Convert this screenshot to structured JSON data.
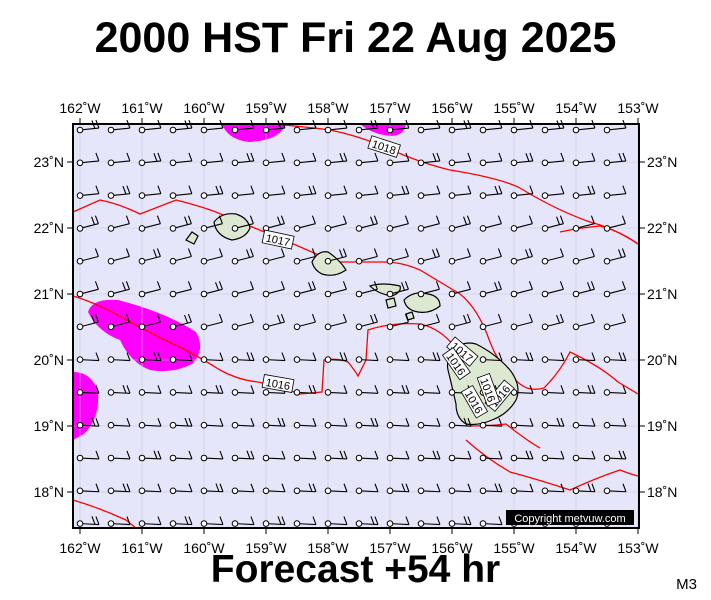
{
  "header": {
    "title": "2000 HST Fri 22 Aug 2025"
  },
  "footer": {
    "forecast": "Forecast +54 hr",
    "model": "M3"
  },
  "copyright": "Copyright metvuw.com",
  "map": {
    "lon_labels": [
      "162˚W",
      "161˚W",
      "160˚W",
      "159˚W",
      "158˚W",
      "157˚W",
      "156˚W",
      "155˚W",
      "154˚W",
      "153˚W"
    ],
    "lat_labels": [
      "23˚N",
      "22˚N",
      "21˚N",
      "20˚N",
      "19˚N",
      "18˚N"
    ],
    "isobar_labels": [
      "1018",
      "1017",
      "1016",
      "1017",
      "1016",
      "1016",
      "1016",
      "1016"
    ],
    "colors": {
      "ocean": "#e6e6fa",
      "isobar": "#ff0000",
      "rain": "#ff00ff",
      "land": "#dde8d2"
    }
  }
}
